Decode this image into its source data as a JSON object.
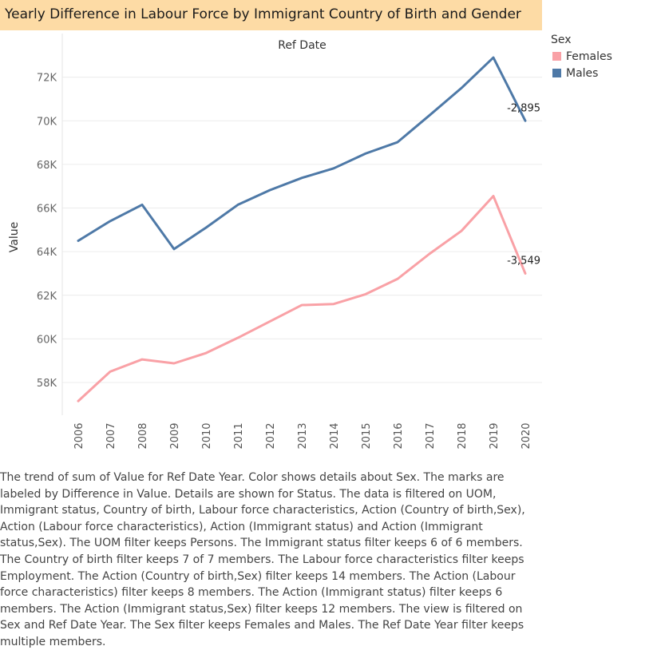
{
  "chart_data": {
    "type": "line",
    "title": "Yearly Difference in Labour Force by Immigrant Country of Birth and Gender",
    "column_header": "Ref Date",
    "ylabel": "Value",
    "ylim": [
      56500,
      74000
    ],
    "yticks": [
      58000,
      60000,
      62000,
      64000,
      66000,
      68000,
      70000,
      72000
    ],
    "ytick_labels": [
      "58K",
      "60K",
      "62K",
      "64K",
      "66K",
      "68K",
      "70K",
      "72K"
    ],
    "x": [
      "2006",
      "2007",
      "2008",
      "2009",
      "2010",
      "2011",
      "2012",
      "2013",
      "2014",
      "2015",
      "2016",
      "2017",
      "2018",
      "2019",
      "2020"
    ],
    "legend_title": "Sex",
    "legend_position": "top-right",
    "grid": true,
    "series": [
      {
        "name": "Females",
        "color": "#f9a1a6",
        "values": [
          57150,
          58500,
          59060,
          58880,
          59350,
          60050,
          60800,
          61550,
          61600,
          62050,
          62750,
          63900,
          64950,
          66550,
          63000
        ],
        "end_label": "-3,549"
      },
      {
        "name": "Males",
        "color": "#4e79a7",
        "values": [
          64500,
          65400,
          66150,
          64120,
          65100,
          66150,
          66820,
          67380,
          67820,
          68500,
          69020,
          70250,
          71500,
          72900,
          70000
        ],
        "end_label": "-2,895"
      }
    ]
  },
  "description": "The trend of sum of Value for Ref Date Year.  Color shows details about Sex.  The marks are labeled by Difference in Value.  Details are shown for Status. The data is filtered on UOM, Immigrant status, Country of birth, Labour force characteristics, Action (Country of birth,Sex), Action (Labour force characteristics), Action (Immigrant status) and Action (Immigrant status,Sex). The UOM filter keeps Persons. The Immigrant status filter keeps 6 of 6 members. The Country of birth filter keeps 7 of 7 members. The Labour force characteristics filter keeps Employment. The Action (Country of birth,Sex) filter keeps 14 members. The Action (Labour force characteristics) filter keeps 8 members. The Action (Immigrant status) filter keeps 6 members. The Action (Immigrant status,Sex) filter keeps 12 members. The view is filtered on Sex and Ref Date Year. The Sex filter keeps Females and Males. The Ref Date Year filter keeps multiple members."
}
